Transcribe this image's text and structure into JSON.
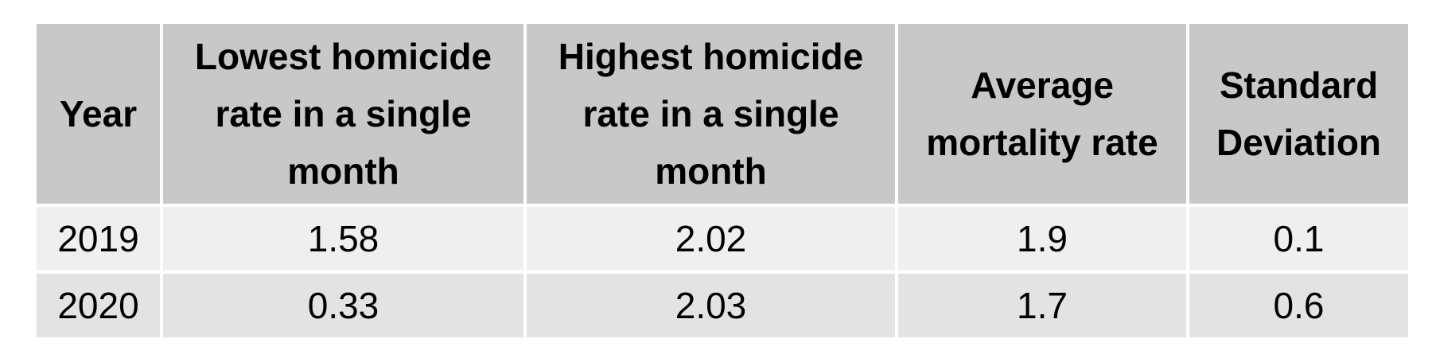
{
  "table": {
    "headers": [
      "Year",
      "Lowest homicide rate in a single month",
      "Highest homicide rate in a single month",
      "Average mortality rate",
      "Standard Deviation"
    ],
    "rows": [
      [
        "2019",
        "1.58",
        "2.02",
        "1.9",
        "0.1"
      ],
      [
        "2020",
        "0.33",
        "2.03",
        "1.7",
        "0.6"
      ]
    ]
  }
}
